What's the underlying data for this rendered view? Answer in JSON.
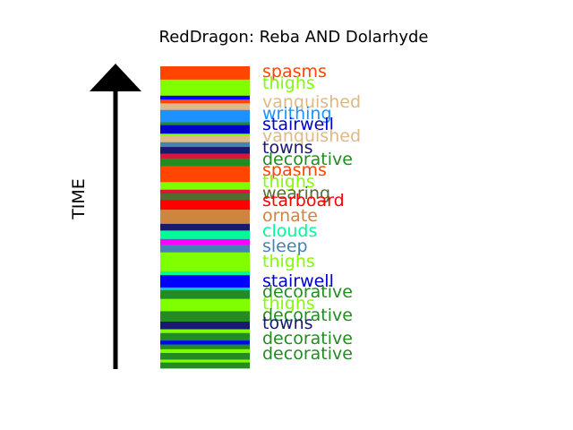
{
  "chart_data": {
    "type": "timeline-strip",
    "title": "RedDragon: Reba AND Dolarhyde",
    "ylabel": "TIME",
    "bands": [
      {
        "color": "#ff4500",
        "h": 14
      },
      {
        "color": "#7fff00",
        "h": 17
      },
      {
        "color": "#0000ff",
        "h": 4
      },
      {
        "color": "#ff4500",
        "h": 4
      },
      {
        "color": "#deb887",
        "h": 7
      },
      {
        "color": "#1e90ff",
        "h": 13
      },
      {
        "color": "#228b22",
        "h": 3
      },
      {
        "color": "#0000cd",
        "h": 9
      },
      {
        "color": "#7fff00",
        "h": 2
      },
      {
        "color": "#deb887",
        "h": 7
      },
      {
        "color": "#4682b4",
        "h": 5
      },
      {
        "color": "#191970",
        "h": 7
      },
      {
        "color": "#dc143c",
        "h": 5
      },
      {
        "color": "#228b22",
        "h": 8
      },
      {
        "color": "#ff4500",
        "h": 17
      },
      {
        "color": "#7fff00",
        "h": 8
      },
      {
        "color": "#dc143c",
        "h": 4
      },
      {
        "color": "#556b2f",
        "h": 7
      },
      {
        "color": "#ff0000",
        "h": 10
      },
      {
        "color": "#cd853f",
        "h": 15
      },
      {
        "color": "#191970",
        "h": 7
      },
      {
        "color": "#00fa9a",
        "h": 9
      },
      {
        "color": "#ff00ff",
        "h": 6
      },
      {
        "color": "#4682b4",
        "h": 8
      },
      {
        "color": "#7fff00",
        "h": 20
      },
      {
        "color": "#00fa9a",
        "h": 4
      },
      {
        "color": "#0000ff",
        "h": 13
      },
      {
        "color": "#00ced1",
        "h": 3
      },
      {
        "color": "#228b22",
        "h": 9
      },
      {
        "color": "#7fff00",
        "h": 13
      },
      {
        "color": "#228b22",
        "h": 11
      },
      {
        "color": "#191970",
        "h": 8
      },
      {
        "color": "#7fff00",
        "h": 4
      },
      {
        "color": "#228b22",
        "h": 8
      },
      {
        "color": "#0000ff",
        "h": 4
      },
      {
        "color": "#228b22",
        "h": 5
      },
      {
        "color": "#7fff00",
        "h": 4
      },
      {
        "color": "#228b22",
        "h": 7
      },
      {
        "color": "#7fff00",
        "h": 3
      },
      {
        "color": "#228b22",
        "h": 6
      }
    ],
    "labels": [
      {
        "text": "spasms",
        "color": "#ff4500"
      },
      {
        "text": "thighs",
        "color": "#7fff00"
      },
      {
        "text": "vanquished",
        "color": "#deb887"
      },
      {
        "text": "writhing",
        "color": "#1e90ff"
      },
      {
        "text": "stairwell",
        "color": "#0000cd"
      },
      {
        "text": "vanquished",
        "color": "#deb887"
      },
      {
        "text": "towns",
        "color": "#191970"
      },
      {
        "text": "decorative",
        "color": "#228b22"
      },
      {
        "text": "spasms",
        "color": "#ff4500"
      },
      {
        "text": "thighs",
        "color": "#7fff00"
      },
      {
        "text": "wearing",
        "color": "#556b2f"
      },
      {
        "text": "starboard",
        "color": "#ff0000"
      },
      {
        "text": "ornate",
        "color": "#cd853f"
      },
      {
        "text": "clouds",
        "color": "#00fa9a"
      },
      {
        "text": "sleep",
        "color": "#4682b4"
      },
      {
        "text": "thighs",
        "color": "#7fff00"
      },
      {
        "text": "stairwell",
        "color": "#0000cd"
      },
      {
        "text": "decorative",
        "color": "#228b22"
      },
      {
        "text": "thighs",
        "color": "#7fff00"
      },
      {
        "text": "decorative",
        "color": "#228b22"
      },
      {
        "text": "towns",
        "color": "#191970"
      },
      {
        "text": "decorative",
        "color": "#228b22"
      },
      {
        "text": "decorative",
        "color": "#228b22"
      }
    ]
  }
}
